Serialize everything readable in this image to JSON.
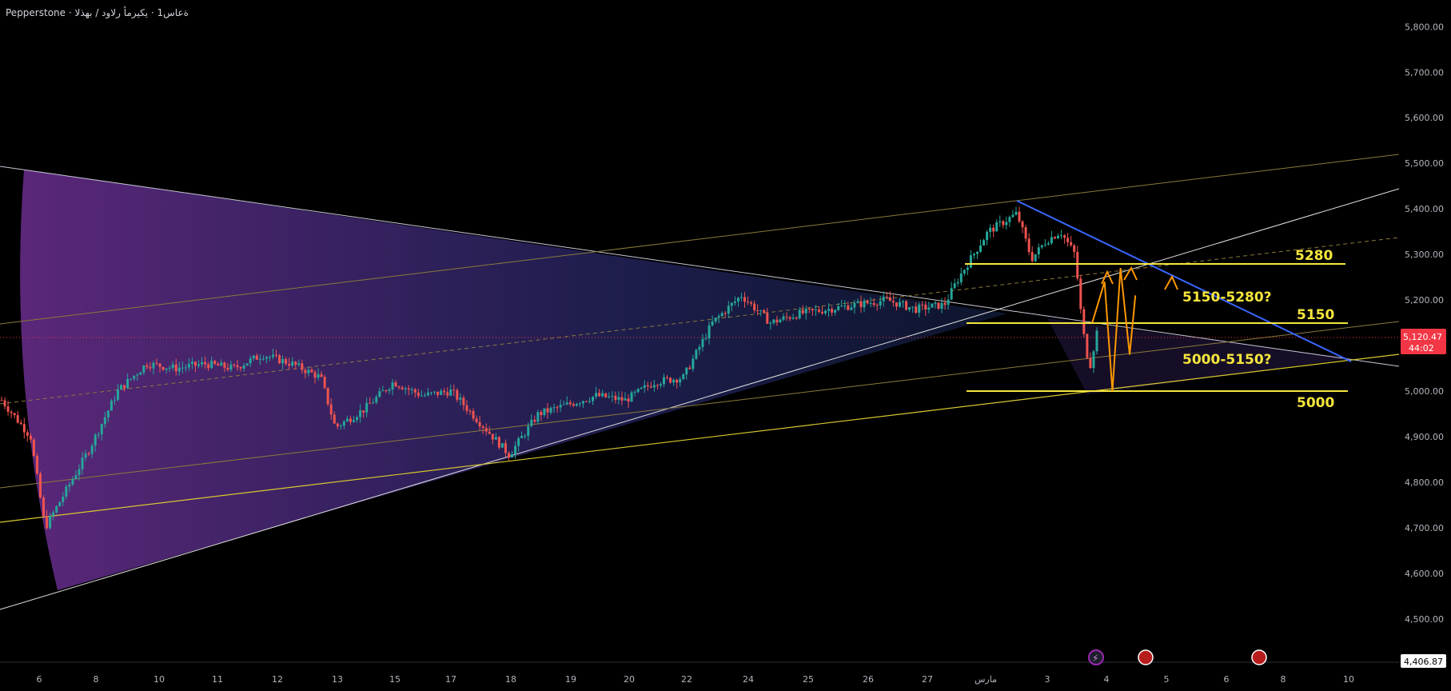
{
  "header": {
    "symbol": "Pepperstone · ةعاس1 · يكيرمأ رلاود / ب​هذلا"
  },
  "colors": {
    "bg": "#000000",
    "up": "#26a69a",
    "down": "#ef5350",
    "level": "#f5e63c",
    "trend": "#2962ff",
    "arrow": "#ff9800",
    "price_badge": "#f23645"
  },
  "chart_data": {
    "type": "candlestick",
    "title": "",
    "y_axis": {
      "ticks": [
        "5,800.00",
        "5,700.00",
        "5,600.00",
        "5,500.00",
        "5,400.00",
        "5,300.00",
        "5,200.00",
        "5,100.00",
        "5,000.00",
        "4,900.00",
        "4,800.00",
        "4,700.00",
        "4,600.00",
        "4,500.00"
      ],
      "ylim": [
        4400,
        5840
      ]
    },
    "x_axis": {
      "ticks": [
        "6",
        "8",
        "10",
        "11",
        "12",
        "13",
        "15",
        "17",
        "18",
        "19",
        "20",
        "22",
        "24",
        "25",
        "26",
        "27",
        "مارس",
        "3",
        "4",
        "5",
        "6",
        "8",
        "10"
      ]
    },
    "current_price": "5,120.47",
    "countdown": "44:02",
    "bottom_price": "4,406.87",
    "levels": [
      {
        "label": "5280",
        "value": 5280
      },
      {
        "label": "5150",
        "value": 5150
      },
      {
        "label": "5000",
        "value": 5000
      }
    ],
    "zones": [
      {
        "label": "5150-5280?"
      },
      {
        "label": "5000-5150?"
      }
    ],
    "price_path": [
      [
        0,
        4980
      ],
      [
        0.02,
        4900
      ],
      [
        0.03,
        4700
      ],
      [
        0.06,
        4870
      ],
      [
        0.08,
        5000
      ],
      [
        0.1,
        5060
      ],
      [
        0.12,
        5050
      ],
      [
        0.14,
        5060
      ],
      [
        0.16,
        5050
      ],
      [
        0.18,
        5080
      ],
      [
        0.2,
        5060
      ],
      [
        0.22,
        5030
      ],
      [
        0.23,
        4920
      ],
      [
        0.25,
        4960
      ],
      [
        0.27,
        5020
      ],
      [
        0.29,
        4990
      ],
      [
        0.31,
        5000
      ],
      [
        0.33,
        4930
      ],
      [
        0.35,
        4860
      ],
      [
        0.37,
        4950
      ],
      [
        0.39,
        4970
      ],
      [
        0.41,
        4990
      ],
      [
        0.43,
        4980
      ],
      [
        0.45,
        5020
      ],
      [
        0.47,
        5030
      ],
      [
        0.49,
        5150
      ],
      [
        0.51,
        5210
      ],
      [
        0.53,
        5150
      ],
      [
        0.55,
        5170
      ],
      [
        0.57,
        5180
      ],
      [
        0.59,
        5190
      ],
      [
        0.61,
        5200
      ],
      [
        0.63,
        5180
      ],
      [
        0.65,
        5190
      ],
      [
        0.66,
        5250
      ],
      [
        0.68,
        5350
      ],
      [
        0.7,
        5390
      ],
      [
        0.71,
        5290
      ],
      [
        0.72,
        5330
      ],
      [
        0.73,
        5350
      ],
      [
        0.74,
        5300
      ],
      [
        0.745,
        5140
      ],
      [
        0.75,
        5050
      ],
      [
        0.755,
        5130
      ]
    ],
    "projection_path": [
      [
        5137,
        5150
      ],
      [
        5195,
        5240
      ],
      [
        5232,
        5000
      ],
      [
        5270,
        5270
      ],
      [
        5313,
        5080
      ],
      [
        5340,
        5210
      ]
    ]
  }
}
